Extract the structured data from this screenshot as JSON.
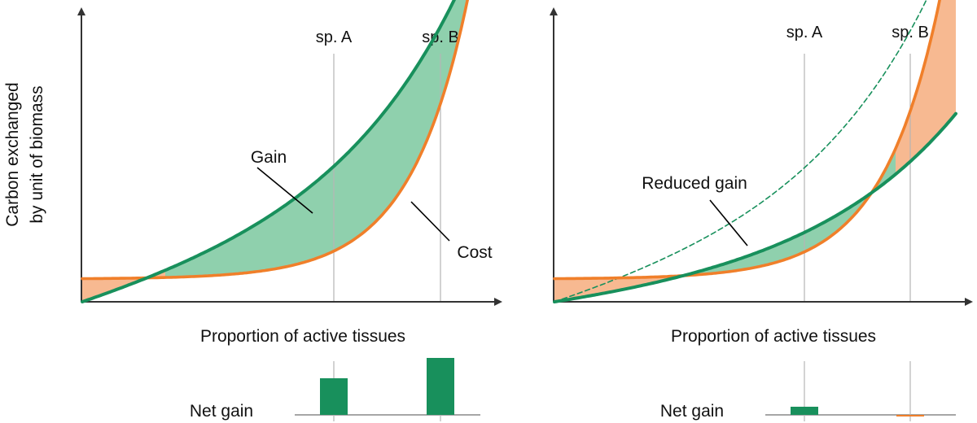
{
  "y_axis_label": {
    "line1": "Carbon exchanged",
    "line2": "by unit of biomass"
  },
  "colors": {
    "gain": "#18905c",
    "cost": "#f07f2a",
    "gain_fill": "#8fd0ad",
    "cost_fill": "#f7b991",
    "axis": "#333333",
    "grid": "#b5b5b5",
    "bar_baseline": "#888888"
  },
  "panels": [
    {
      "id": "left",
      "species_labels": [
        "sp. A",
        "sp. B"
      ],
      "curve_labels": {
        "gain": "Gain",
        "cost": "Cost"
      },
      "x_axis_label": "Proportion of active tissues",
      "net_gain_label": "Net gain",
      "net_gain": {
        "sp_A": 0.45,
        "sp_B": 0.7
      },
      "gain_state": "full"
    },
    {
      "id": "right",
      "species_labels": [
        "sp. A",
        "sp. B"
      ],
      "curve_labels": {
        "reduced_gain": "Reduced gain"
      },
      "x_axis_label": "Proportion of active tissues",
      "net_gain_label": "Net gain",
      "net_gain": {
        "sp_A": 0.1,
        "sp_B": -0.02
      },
      "gain_state": "reduced",
      "original_gain_style": "dashed"
    }
  ]
}
